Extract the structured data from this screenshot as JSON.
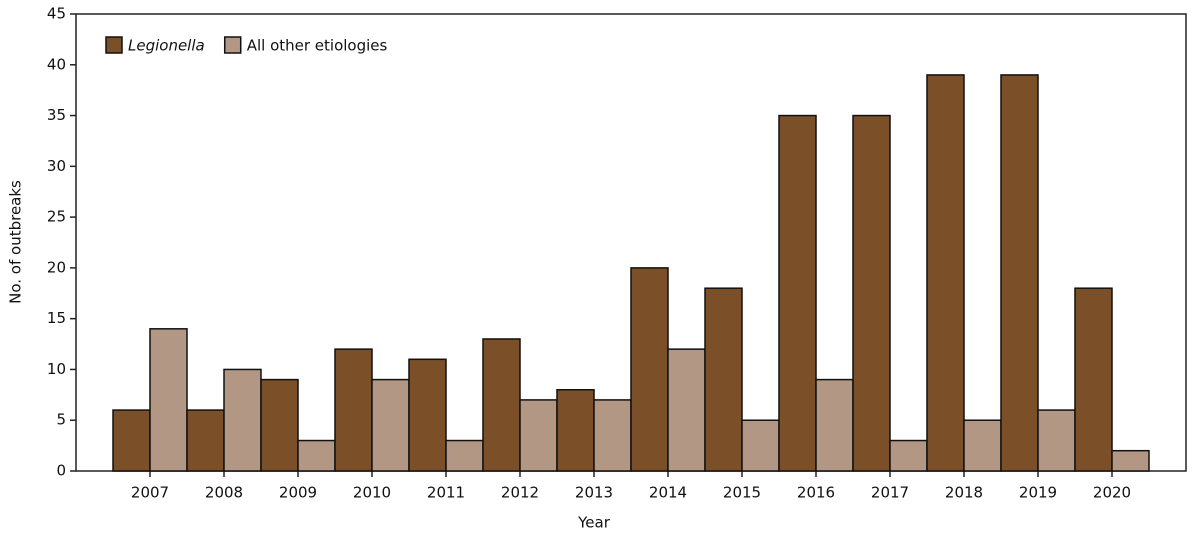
{
  "chart_data": {
    "type": "bar",
    "x_label": "Year",
    "y_label": "No. of outbreaks",
    "categories": [
      "2007",
      "2008",
      "2009",
      "2010",
      "2011",
      "2012",
      "2013",
      "2014",
      "2015",
      "2016",
      "2017",
      "2018",
      "2019",
      "2020"
    ],
    "series": [
      {
        "name": "Legionella",
        "color": "#7b4f27",
        "values": [
          6,
          6,
          9,
          12,
          11,
          13,
          8,
          20,
          18,
          35,
          35,
          39,
          39,
          18
        ]
      },
      {
        "name": "All other etiologies",
        "color": "#b39785",
        "values": [
          14,
          10,
          3,
          9,
          3,
          7,
          7,
          12,
          5,
          9,
          3,
          5,
          6,
          2
        ]
      }
    ],
    "ylim": [
      0,
      45
    ],
    "yticks": [
      0,
      5,
      10,
      15,
      20,
      25,
      30,
      35,
      40,
      45
    ],
    "grid": false,
    "legend": "top-left"
  }
}
